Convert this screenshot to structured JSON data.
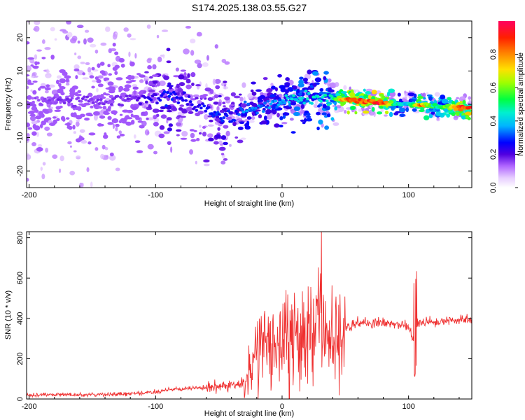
{
  "figure": {
    "title": "S174.2025.138.03.55.G27"
  },
  "colors": {
    "snr_line": "#ef3030",
    "colormap": [
      "#ffffff",
      "#d9b8ff",
      "#9a2cf0",
      "#5000e0",
      "#0000ff",
      "#00d8ff",
      "#00ff70",
      "#c8ff00",
      "#ffcc00",
      "#ff5000",
      "#ff0050"
    ]
  },
  "chart_data": [
    {
      "type": "heatmap",
      "title": "S174.2025.138.03.55.G27",
      "xlabel": "Height of straight line (km)",
      "ylabel": "Frequency (Hz)",
      "colorbar_label": "Normalized spectral amplitude",
      "xlim": [
        -202,
        150
      ],
      "ylim": [
        -25,
        25
      ],
      "xticks": [
        -200,
        -100,
        0,
        100
      ],
      "yticks": [
        -20,
        -10,
        0,
        10,
        20
      ],
      "colorbar_ticks": [
        0.0,
        0.2,
        0.4,
        0.6,
        0.8
      ],
      "colorbar_range": [
        0,
        1
      ],
      "ridge": {
        "x": [
          -200,
          -180,
          -160,
          -140,
          -120,
          -100,
          -90,
          -80,
          -70,
          -60,
          -50,
          -45,
          -40,
          -35,
          -30,
          -20,
          -10,
          0,
          10,
          20,
          30,
          40,
          50,
          60,
          70,
          80,
          90,
          100,
          110,
          120,
          130,
          140,
          150
        ],
        "frequency": [
          1.0,
          1.5,
          1.0,
          1.5,
          1.5,
          2.0,
          2.5,
          2.0,
          0.0,
          -1.5,
          -3.0,
          -3.8,
          -4.5,
          -2.0,
          -1.5,
          -1.5,
          0.0,
          1.0,
          1.5,
          2.0,
          2.0,
          1.5,
          1.5,
          1.0,
          1.0,
          0.5,
          0.0,
          0.0,
          -0.3,
          -0.5,
          -0.8,
          -1.0,
          -1.0
        ],
        "amplitude": [
          0.15,
          0.17,
          0.17,
          0.17,
          0.18,
          0.25,
          0.3,
          0.25,
          0.24,
          0.28,
          0.3,
          0.3,
          0.28,
          0.3,
          0.35,
          0.35,
          0.35,
          0.4,
          0.45,
          0.45,
          0.45,
          0.5,
          0.85,
          0.9,
          0.9,
          0.95,
          0.5,
          0.4,
          0.85,
          0.5,
          0.6,
          0.9,
          0.95
        ]
      }
    },
    {
      "type": "line",
      "xlabel": "Height of straight line (km)",
      "ylabel": "SNR (10 * v/v)",
      "xlim": [
        -202,
        150
      ],
      "ylim": [
        0,
        830
      ],
      "xticks": [
        -200,
        -100,
        0,
        100
      ],
      "yticks": [
        0,
        200,
        400,
        600,
        800
      ],
      "series": [
        {
          "x": [
            -200,
            -180,
            -160,
            -140,
            -120,
            -110,
            -100,
            -90,
            -80,
            -70,
            -60,
            -50,
            -40,
            -30,
            -26,
            -20,
            -10,
            0,
            10,
            20,
            23,
            25,
            30,
            35,
            40,
            45,
            50,
            60,
            70,
            80,
            90,
            100,
            105,
            107,
            110,
            120,
            130,
            140,
            150
          ],
          "values": [
            20,
            22,
            20,
            22,
            25,
            30,
            35,
            45,
            50,
            55,
            55,
            60,
            65,
            80,
            140,
            230,
            260,
            280,
            300,
            330,
            350,
            360,
            340,
            330,
            320,
            320,
            360,
            380,
            380,
            375,
            370,
            360,
            260,
            370,
            380,
            385,
            390,
            395,
            395
          ]
        }
      ]
    }
  ]
}
